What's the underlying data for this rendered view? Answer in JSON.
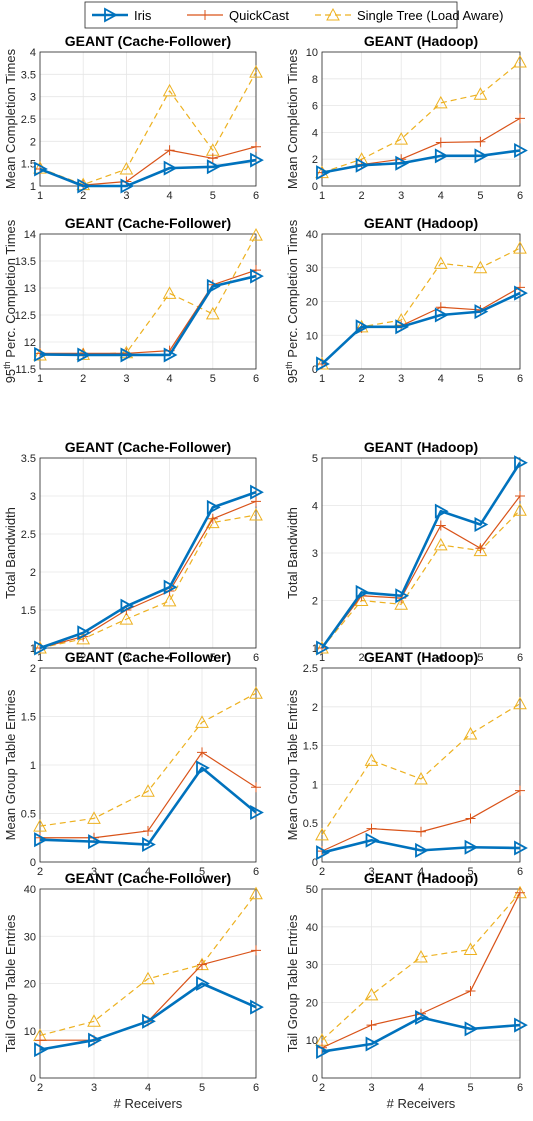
{
  "legend": {
    "entries": [
      {
        "name": "Iris",
        "color": "#0072BD",
        "marker": "triangle-right",
        "dash": "solid"
      },
      {
        "name": "QuickCast",
        "color": "#D95319",
        "marker": "plus",
        "dash": "solid"
      },
      {
        "name": "Single Tree (Load Aware)",
        "color": "#EDB120",
        "marker": "triangle-up",
        "dash": "dashed"
      }
    ]
  },
  "xlabel": "# Receivers",
  "chart_data": [
    {
      "type": "line",
      "title": "GEANT (Cache-Follower)",
      "ylabel": "Mean Completion Times",
      "x": [
        1,
        2,
        3,
        4,
        5,
        6
      ],
      "xlim": [
        1,
        6
      ],
      "ylim": [
        1,
        4
      ],
      "yticks": [
        1,
        1.5,
        2,
        2.5,
        3,
        3.5,
        4
      ],
      "grid": true,
      "series": [
        {
          "name": "Iris",
          "values": [
            1.38,
            1.0,
            1.0,
            1.4,
            1.43,
            1.58
          ]
        },
        {
          "name": "QuickCast",
          "values": [
            1.38,
            1.02,
            1.1,
            1.8,
            1.62,
            1.88
          ]
        },
        {
          "name": "Single Tree (Load Aware)",
          "values": [
            1.4,
            1.03,
            1.38,
            3.13,
            1.8,
            3.55
          ]
        }
      ]
    },
    {
      "type": "line",
      "title": "GEANT (Hadoop)",
      "ylabel": "Mean Completion Times",
      "x": [
        1,
        2,
        3,
        4,
        5,
        6
      ],
      "xlim": [
        1,
        6
      ],
      "ylim": [
        0,
        10
      ],
      "yticks": [
        0,
        2,
        4,
        6,
        8,
        10
      ],
      "grid": true,
      "series": [
        {
          "name": "Iris",
          "values": [
            1.0,
            1.55,
            1.7,
            2.25,
            2.25,
            2.65
          ]
        },
        {
          "name": "QuickCast",
          "values": [
            1.0,
            1.6,
            2.0,
            3.25,
            3.3,
            5.05
          ]
        },
        {
          "name": "Single Tree (Load Aware)",
          "values": [
            1.0,
            2.0,
            3.5,
            6.2,
            6.85,
            9.25
          ]
        }
      ]
    },
    {
      "type": "line",
      "title": "GEANT (Cache-Follower)",
      "ylabel": "95th Perc. Completion Times",
      "ylabel_main": "95",
      "ylabel_sup": "th",
      "ylabel_rest": " Perc. Completion Times",
      "x": [
        1,
        2,
        3,
        4,
        5,
        6
      ],
      "xlim": [
        1,
        6
      ],
      "ylim": [
        11.5,
        14
      ],
      "yticks": [
        11.5,
        12,
        12.5,
        13,
        13.5,
        14
      ],
      "grid": true,
      "series": [
        {
          "name": "Iris",
          "values": [
            11.77,
            11.76,
            11.76,
            11.76,
            13.03,
            13.22
          ]
        },
        {
          "name": "QuickCast",
          "values": [
            11.79,
            11.79,
            11.79,
            11.84,
            13.06,
            13.33
          ]
        },
        {
          "name": "Single Tree (Load Aware)",
          "values": [
            11.76,
            11.77,
            11.8,
            12.9,
            12.52,
            13.98
          ]
        }
      ]
    },
    {
      "type": "line",
      "title": "GEANT (Hadoop)",
      "ylabel": "95th Perc. Completion Times",
      "ylabel_main": "95",
      "ylabel_sup": "th",
      "ylabel_rest": " Perc. Completion Times",
      "x": [
        1,
        2,
        3,
        4,
        5,
        6
      ],
      "xlim": [
        1,
        6
      ],
      "ylim": [
        0,
        40
      ],
      "yticks": [
        0,
        10,
        20,
        30,
        40
      ],
      "grid": true,
      "series": [
        {
          "name": "Iris",
          "values": [
            1.5,
            12.5,
            12.5,
            16.0,
            17.0,
            22.5
          ]
        },
        {
          "name": "QuickCast",
          "values": [
            1.5,
            12.2,
            12.8,
            18.3,
            17.5,
            24.2
          ]
        },
        {
          "name": "Single Tree (Load Aware)",
          "values": [
            1.5,
            12.5,
            14.5,
            31.3,
            30.0,
            35.8
          ]
        }
      ]
    },
    {
      "type": "line",
      "title": "GEANT (Cache-Follower)",
      "ylabel": "Total Bandwidth",
      "x": [
        1,
        2,
        3,
        4,
        5,
        6
      ],
      "xlim": [
        1,
        6
      ],
      "ylim": [
        1,
        3.5
      ],
      "yticks": [
        1,
        1.5,
        2,
        2.5,
        3,
        3.5
      ],
      "grid": true,
      "series": [
        {
          "name": "Iris",
          "values": [
            1.0,
            1.2,
            1.55,
            1.8,
            2.85,
            3.05
          ]
        },
        {
          "name": "QuickCast",
          "values": [
            1.0,
            1.15,
            1.5,
            1.75,
            2.7,
            2.93
          ]
        },
        {
          "name": "Single Tree (Load Aware)",
          "values": [
            1.0,
            1.12,
            1.38,
            1.62,
            2.65,
            2.75
          ]
        }
      ]
    },
    {
      "type": "line",
      "title": "GEANT (Hadoop)",
      "ylabel": "Total Bandwidth",
      "x": [
        1,
        2,
        3,
        4,
        5,
        6
      ],
      "xlim": [
        1,
        6
      ],
      "ylim": [
        1,
        5
      ],
      "yticks": [
        1,
        2,
        3,
        4,
        5
      ],
      "grid": true,
      "series": [
        {
          "name": "Iris",
          "values": [
            1.0,
            2.17,
            2.1,
            3.88,
            3.6,
            4.9
          ]
        },
        {
          "name": "QuickCast",
          "values": [
            1.0,
            2.1,
            2.05,
            3.58,
            3.1,
            4.2
          ]
        },
        {
          "name": "Single Tree (Load Aware)",
          "values": [
            1.0,
            2.0,
            1.92,
            3.17,
            3.05,
            3.9
          ]
        }
      ]
    },
    {
      "type": "line",
      "title": "GEANT (Cache-Follower)",
      "ylabel": "Mean Group Table Entries",
      "x": [
        2,
        3,
        4,
        5,
        6
      ],
      "xlim": [
        2,
        6
      ],
      "ylim": [
        0,
        2
      ],
      "yticks": [
        0,
        0.5,
        1,
        1.5,
        2
      ],
      "grid": true,
      "series": [
        {
          "name": "Iris",
          "values": [
            0.23,
            0.21,
            0.18,
            0.97,
            0.51
          ]
        },
        {
          "name": "QuickCast",
          "values": [
            0.25,
            0.25,
            0.32,
            1.13,
            0.77
          ]
        },
        {
          "name": "Single Tree (Load Aware)",
          "values": [
            0.37,
            0.45,
            0.73,
            1.44,
            1.74
          ]
        }
      ]
    },
    {
      "type": "line",
      "title": "GEANT (Hadoop)",
      "ylabel": "Mean Group Table Entries",
      "x": [
        2,
        3,
        4,
        5,
        6
      ],
      "xlim": [
        2,
        6
      ],
      "ylim": [
        0,
        2.5
      ],
      "yticks": [
        0,
        0.5,
        1,
        1.5,
        2,
        2.5
      ],
      "grid": true,
      "series": [
        {
          "name": "Iris",
          "values": [
            0.12,
            0.28,
            0.15,
            0.19,
            0.18
          ]
        },
        {
          "name": "QuickCast",
          "values": [
            0.14,
            0.43,
            0.39,
            0.56,
            0.92
          ]
        },
        {
          "name": "Single Tree (Load Aware)",
          "values": [
            0.35,
            1.31,
            1.07,
            1.65,
            2.04
          ]
        }
      ]
    },
    {
      "type": "line",
      "title": "GEANT (Cache-Follower)",
      "ylabel": "Tail Group Table Entries",
      "x": [
        2,
        3,
        4,
        5,
        6
      ],
      "xlim": [
        2,
        6
      ],
      "ylim": [
        0,
        40
      ],
      "yticks": [
        0,
        10,
        20,
        30,
        40
      ],
      "grid": true,
      "series": [
        {
          "name": "Iris",
          "values": [
            6,
            8,
            12,
            20,
            15
          ]
        },
        {
          "name": "QuickCast",
          "values": [
            8,
            8,
            12,
            24,
            27
          ]
        },
        {
          "name": "Single Tree (Load Aware)",
          "values": [
            9,
            12,
            21,
            24,
            39
          ]
        }
      ]
    },
    {
      "type": "line",
      "title": "GEANT (Hadoop)",
      "ylabel": "Tail Group Table Entries",
      "x": [
        2,
        3,
        4,
        5,
        6
      ],
      "xlim": [
        2,
        6
      ],
      "ylim": [
        0,
        50
      ],
      "yticks": [
        0,
        10,
        20,
        30,
        40,
        50
      ],
      "grid": true,
      "series": [
        {
          "name": "Iris",
          "values": [
            7,
            9,
            16,
            13,
            14
          ]
        },
        {
          "name": "QuickCast",
          "values": [
            8,
            14,
            17,
            23,
            49
          ]
        },
        {
          "name": "Single Tree (Load Aware)",
          "values": [
            10,
            22,
            32,
            34,
            49
          ]
        }
      ]
    }
  ]
}
